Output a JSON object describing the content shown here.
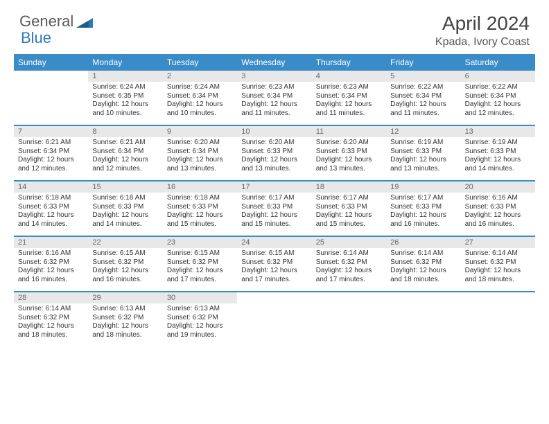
{
  "logo": {
    "t1": "General",
    "t2": "Blue"
  },
  "title": "April 2024",
  "location": "Kpada, Ivory Coast",
  "day_names": [
    "Sunday",
    "Monday",
    "Tuesday",
    "Wednesday",
    "Thursday",
    "Friday",
    "Saturday"
  ],
  "colors": {
    "header_bg": "#3a8cc9",
    "daynum_bg": "#e8e8e8",
    "accent": "#2a7ab8"
  },
  "weeks": [
    [
      {
        "n": "",
        "sr": "",
        "ss": "",
        "dl": ""
      },
      {
        "n": "1",
        "sr": "Sunrise: 6:24 AM",
        "ss": "Sunset: 6:35 PM",
        "dl": "Daylight: 12 hours and 10 minutes."
      },
      {
        "n": "2",
        "sr": "Sunrise: 6:24 AM",
        "ss": "Sunset: 6:34 PM",
        "dl": "Daylight: 12 hours and 10 minutes."
      },
      {
        "n": "3",
        "sr": "Sunrise: 6:23 AM",
        "ss": "Sunset: 6:34 PM",
        "dl": "Daylight: 12 hours and 11 minutes."
      },
      {
        "n": "4",
        "sr": "Sunrise: 6:23 AM",
        "ss": "Sunset: 6:34 PM",
        "dl": "Daylight: 12 hours and 11 minutes."
      },
      {
        "n": "5",
        "sr": "Sunrise: 6:22 AM",
        "ss": "Sunset: 6:34 PM",
        "dl": "Daylight: 12 hours and 11 minutes."
      },
      {
        "n": "6",
        "sr": "Sunrise: 6:22 AM",
        "ss": "Sunset: 6:34 PM",
        "dl": "Daylight: 12 hours and 12 minutes."
      }
    ],
    [
      {
        "n": "7",
        "sr": "Sunrise: 6:21 AM",
        "ss": "Sunset: 6:34 PM",
        "dl": "Daylight: 12 hours and 12 minutes."
      },
      {
        "n": "8",
        "sr": "Sunrise: 6:21 AM",
        "ss": "Sunset: 6:34 PM",
        "dl": "Daylight: 12 hours and 12 minutes."
      },
      {
        "n": "9",
        "sr": "Sunrise: 6:20 AM",
        "ss": "Sunset: 6:34 PM",
        "dl": "Daylight: 12 hours and 13 minutes."
      },
      {
        "n": "10",
        "sr": "Sunrise: 6:20 AM",
        "ss": "Sunset: 6:33 PM",
        "dl": "Daylight: 12 hours and 13 minutes."
      },
      {
        "n": "11",
        "sr": "Sunrise: 6:20 AM",
        "ss": "Sunset: 6:33 PM",
        "dl": "Daylight: 12 hours and 13 minutes."
      },
      {
        "n": "12",
        "sr": "Sunrise: 6:19 AM",
        "ss": "Sunset: 6:33 PM",
        "dl": "Daylight: 12 hours and 13 minutes."
      },
      {
        "n": "13",
        "sr": "Sunrise: 6:19 AM",
        "ss": "Sunset: 6:33 PM",
        "dl": "Daylight: 12 hours and 14 minutes."
      }
    ],
    [
      {
        "n": "14",
        "sr": "Sunrise: 6:18 AM",
        "ss": "Sunset: 6:33 PM",
        "dl": "Daylight: 12 hours and 14 minutes."
      },
      {
        "n": "15",
        "sr": "Sunrise: 6:18 AM",
        "ss": "Sunset: 6:33 PM",
        "dl": "Daylight: 12 hours and 14 minutes."
      },
      {
        "n": "16",
        "sr": "Sunrise: 6:18 AM",
        "ss": "Sunset: 6:33 PM",
        "dl": "Daylight: 12 hours and 15 minutes."
      },
      {
        "n": "17",
        "sr": "Sunrise: 6:17 AM",
        "ss": "Sunset: 6:33 PM",
        "dl": "Daylight: 12 hours and 15 minutes."
      },
      {
        "n": "18",
        "sr": "Sunrise: 6:17 AM",
        "ss": "Sunset: 6:33 PM",
        "dl": "Daylight: 12 hours and 15 minutes."
      },
      {
        "n": "19",
        "sr": "Sunrise: 6:17 AM",
        "ss": "Sunset: 6:33 PM",
        "dl": "Daylight: 12 hours and 16 minutes."
      },
      {
        "n": "20",
        "sr": "Sunrise: 6:16 AM",
        "ss": "Sunset: 6:33 PM",
        "dl": "Daylight: 12 hours and 16 minutes."
      }
    ],
    [
      {
        "n": "21",
        "sr": "Sunrise: 6:16 AM",
        "ss": "Sunset: 6:32 PM",
        "dl": "Daylight: 12 hours and 16 minutes."
      },
      {
        "n": "22",
        "sr": "Sunrise: 6:15 AM",
        "ss": "Sunset: 6:32 PM",
        "dl": "Daylight: 12 hours and 16 minutes."
      },
      {
        "n": "23",
        "sr": "Sunrise: 6:15 AM",
        "ss": "Sunset: 6:32 PM",
        "dl": "Daylight: 12 hours and 17 minutes."
      },
      {
        "n": "24",
        "sr": "Sunrise: 6:15 AM",
        "ss": "Sunset: 6:32 PM",
        "dl": "Daylight: 12 hours and 17 minutes."
      },
      {
        "n": "25",
        "sr": "Sunrise: 6:14 AM",
        "ss": "Sunset: 6:32 PM",
        "dl": "Daylight: 12 hours and 17 minutes."
      },
      {
        "n": "26",
        "sr": "Sunrise: 6:14 AM",
        "ss": "Sunset: 6:32 PM",
        "dl": "Daylight: 12 hours and 18 minutes."
      },
      {
        "n": "27",
        "sr": "Sunrise: 6:14 AM",
        "ss": "Sunset: 6:32 PM",
        "dl": "Daylight: 12 hours and 18 minutes."
      }
    ],
    [
      {
        "n": "28",
        "sr": "Sunrise: 6:14 AM",
        "ss": "Sunset: 6:32 PM",
        "dl": "Daylight: 12 hours and 18 minutes."
      },
      {
        "n": "29",
        "sr": "Sunrise: 6:13 AM",
        "ss": "Sunset: 6:32 PM",
        "dl": "Daylight: 12 hours and 18 minutes."
      },
      {
        "n": "30",
        "sr": "Sunrise: 6:13 AM",
        "ss": "Sunset: 6:32 PM",
        "dl": "Daylight: 12 hours and 19 minutes."
      },
      {
        "n": "",
        "sr": "",
        "ss": "",
        "dl": ""
      },
      {
        "n": "",
        "sr": "",
        "ss": "",
        "dl": ""
      },
      {
        "n": "",
        "sr": "",
        "ss": "",
        "dl": ""
      },
      {
        "n": "",
        "sr": "",
        "ss": "",
        "dl": ""
      }
    ]
  ]
}
